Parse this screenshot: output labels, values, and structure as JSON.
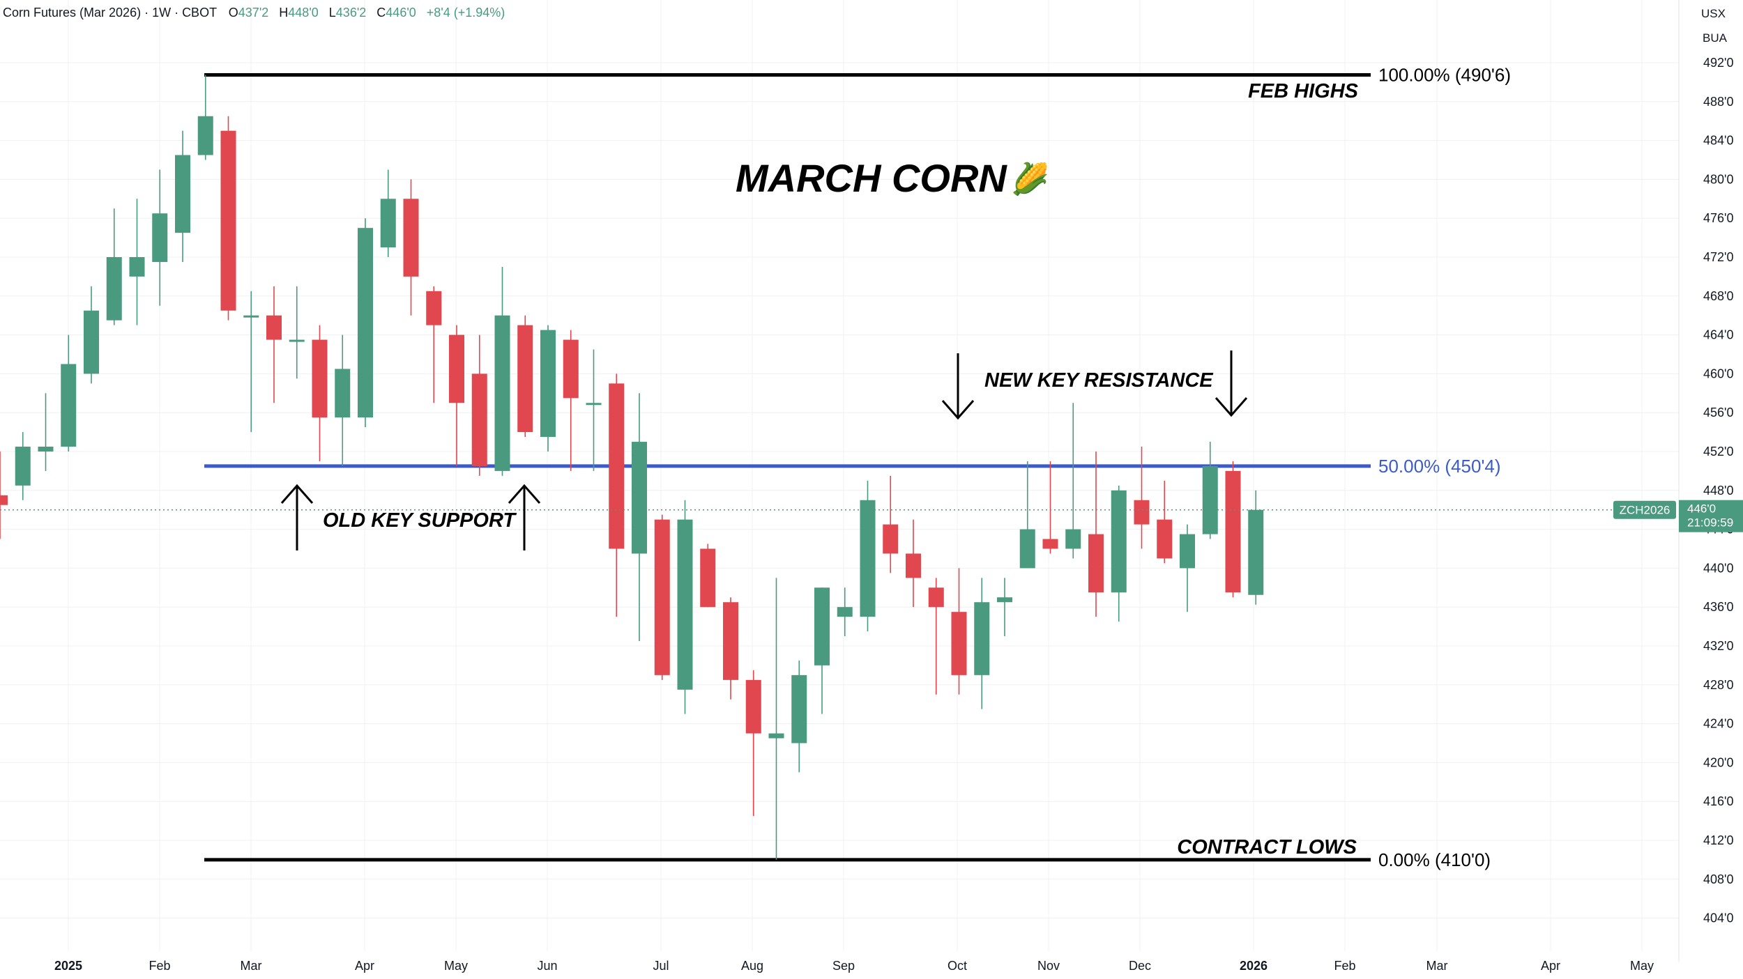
{
  "header": {
    "symbol_text": "Corn Futures (Mar 2026) · 1W · CBOT",
    "open_key": "O",
    "open_val": "437'2",
    "high_key": "H",
    "high_val": "448'0",
    "low_key": "L",
    "low_val": "436'2",
    "close_key": "C",
    "close_val": "446'0",
    "change": "+8'4 (+1.94%)"
  },
  "right_panel": {
    "currency": "USX",
    "unit": "BUA"
  },
  "colors": {
    "up": "#4a9a7f",
    "down": "#e0474f",
    "fib_mid": "#3c5bc8",
    "level_line": "#000000",
    "grid": "#eef0f3",
    "price_tag": "#4a9a7f"
  },
  "annotations": {
    "title": "MARCH CORN",
    "title_emoji": "🌽",
    "feb_highs": "FEB HIGHS",
    "contract_lows": "CONTRACT LOWS",
    "new_key_resistance": "NEW KEY RESISTANCE",
    "old_key_support": "OLD KEY SUPPORT"
  },
  "price_tag": {
    "symbol": "ZCH2026",
    "price": "446'0",
    "countdown": "21:09:59"
  },
  "chart_data": {
    "type": "candlestick",
    "interval": "1W",
    "y_unit": "cents/bu",
    "ylim": [
      402,
      495
    ],
    "y_ticks": [
      404,
      408,
      412,
      416,
      420,
      424,
      428,
      432,
      436,
      440,
      444,
      448,
      452,
      456,
      460,
      464,
      468,
      472,
      476,
      480,
      484,
      488,
      492
    ],
    "y_tick_labels": [
      "404'0",
      "408'0",
      "412'0",
      "416'0",
      "420'0",
      "424'0",
      "428'0",
      "432'0",
      "436'0",
      "440'0",
      "444'0",
      "448'0",
      "452'0",
      "456'0",
      "460'0",
      "464'0",
      "468'0",
      "472'0",
      "476'0",
      "480'0",
      "484'0",
      "488'0",
      "492'0"
    ],
    "x_labels": [
      {
        "label": "2025",
        "bold": true
      },
      {
        "label": "Feb"
      },
      {
        "label": "Mar"
      },
      {
        "label": "Apr"
      },
      {
        "label": "May"
      },
      {
        "label": "Jun"
      },
      {
        "label": "Jul"
      },
      {
        "label": "Aug"
      },
      {
        "label": "Sep"
      },
      {
        "label": "Oct"
      },
      {
        "label": "Nov"
      },
      {
        "label": "Dec"
      },
      {
        "label": "2026",
        "bold": true
      },
      {
        "label": "Feb"
      },
      {
        "label": "Mar"
      },
      {
        "label": "Apr"
      },
      {
        "label": "May"
      }
    ],
    "fib_levels": [
      {
        "label": "100.00% (490'6)",
        "price": 490.75
      },
      {
        "label": "50.00% (450'4)",
        "price": 450.5
      },
      {
        "label": "0.00% (410'0)",
        "price": 410.0
      }
    ],
    "candles": [
      {
        "o": 447.5,
        "h": 452.0,
        "l": 443.0,
        "c": 446.5
      },
      {
        "o": 448.5,
        "h": 454.0,
        "l": 447.0,
        "c": 452.5
      },
      {
        "o": 452.0,
        "h": 458.0,
        "l": 450.0,
        "c": 452.5
      },
      {
        "o": 452.5,
        "h": 464.0,
        "l": 452.0,
        "c": 461.0
      },
      {
        "o": 460.0,
        "h": 469.0,
        "l": 459.0,
        "c": 466.5
      },
      {
        "o": 465.5,
        "h": 477.0,
        "l": 465.0,
        "c": 472.0
      },
      {
        "o": 470.0,
        "h": 478.0,
        "l": 465.0,
        "c": 472.0
      },
      {
        "o": 471.5,
        "h": 481.0,
        "l": 467.0,
        "c": 476.5
      },
      {
        "o": 474.5,
        "h": 485.0,
        "l": 471.5,
        "c": 482.5
      },
      {
        "o": 482.5,
        "h": 490.75,
        "l": 482.0,
        "c": 486.5
      },
      {
        "o": 485.0,
        "h": 486.5,
        "l": 465.5,
        "c": 466.5
      },
      {
        "o": 466.0,
        "h": 468.5,
        "l": 454.0,
        "c": 466.0
      },
      {
        "o": 466.0,
        "h": 469.0,
        "l": 457.0,
        "c": 463.5
      },
      {
        "o": 463.5,
        "h": 469.0,
        "l": 459.5,
        "c": 463.5
      },
      {
        "o": 463.5,
        "h": 465.0,
        "l": 451.0,
        "c": 455.5
      },
      {
        "o": 455.5,
        "h": 464.0,
        "l": 450.5,
        "c": 460.5
      },
      {
        "o": 455.5,
        "h": 476.0,
        "l": 454.5,
        "c": 475.0
      },
      {
        "o": 473.0,
        "h": 481.0,
        "l": 472.0,
        "c": 478.0
      },
      {
        "o": 478.0,
        "h": 480.0,
        "l": 466.0,
        "c": 470.0
      },
      {
        "o": 468.5,
        "h": 469.0,
        "l": 457.0,
        "c": 465.0
      },
      {
        "o": 464.0,
        "h": 465.0,
        "l": 450.5,
        "c": 457.0
      },
      {
        "o": 460.0,
        "h": 464.0,
        "l": 449.5,
        "c": 450.5
      },
      {
        "o": 450.0,
        "h": 471.0,
        "l": 449.5,
        "c": 466.0
      },
      {
        "o": 465.0,
        "h": 466.0,
        "l": 453.5,
        "c": 454.0
      },
      {
        "o": 453.5,
        "h": 465.0,
        "l": 452.0,
        "c": 464.5
      },
      {
        "o": 463.5,
        "h": 464.5,
        "l": 450.0,
        "c": 457.5
      },
      {
        "o": 457.0,
        "h": 462.5,
        "l": 450.0,
        "c": 457.0
      },
      {
        "o": 459.0,
        "h": 460.0,
        "l": 435.0,
        "c": 442.0
      },
      {
        "o": 441.5,
        "h": 458.0,
        "l": 432.5,
        "c": 453.0
      },
      {
        "o": 445.0,
        "h": 445.5,
        "l": 428.5,
        "c": 429.0
      },
      {
        "o": 427.5,
        "h": 447.0,
        "l": 425.0,
        "c": 445.0
      },
      {
        "o": 442.0,
        "h": 442.5,
        "l": 436.0,
        "c": 436.0
      },
      {
        "o": 436.5,
        "h": 437.0,
        "l": 426.5,
        "c": 428.5
      },
      {
        "o": 428.5,
        "h": 429.5,
        "l": 414.5,
        "c": 423.0
      },
      {
        "o": 422.5,
        "h": 439.0,
        "l": 410.0,
        "c": 423.0
      },
      {
        "o": 422.0,
        "h": 430.5,
        "l": 419.0,
        "c": 429.0
      },
      {
        "o": 430.0,
        "h": 438.0,
        "l": 425.0,
        "c": 438.0
      },
      {
        "o": 435.0,
        "h": 438.0,
        "l": 433.0,
        "c": 436.0
      },
      {
        "o": 435.0,
        "h": 449.0,
        "l": 433.5,
        "c": 447.0
      },
      {
        "o": 444.5,
        "h": 449.5,
        "l": 439.5,
        "c": 441.5
      },
      {
        "o": 441.5,
        "h": 445.0,
        "l": 436.0,
        "c": 439.0
      },
      {
        "o": 438.0,
        "h": 439.0,
        "l": 427.0,
        "c": 436.0
      },
      {
        "o": 435.5,
        "h": 440.0,
        "l": 427.0,
        "c": 429.0
      },
      {
        "o": 429.0,
        "h": 439.0,
        "l": 425.5,
        "c": 436.5
      },
      {
        "o": 436.5,
        "h": 439.0,
        "l": 433.0,
        "c": 437.0
      },
      {
        "o": 440.0,
        "h": 451.0,
        "l": 440.0,
        "c": 444.0
      },
      {
        "o": 443.0,
        "h": 451.0,
        "l": 441.5,
        "c": 442.0
      },
      {
        "o": 442.0,
        "h": 457.0,
        "l": 441.0,
        "c": 444.0
      },
      {
        "o": 443.5,
        "h": 452.0,
        "l": 435.0,
        "c": 437.5
      },
      {
        "o": 437.5,
        "h": 448.5,
        "l": 434.5,
        "c": 448.0
      },
      {
        "o": 447.0,
        "h": 452.5,
        "l": 442.0,
        "c": 444.5
      },
      {
        "o": 445.0,
        "h": 449.0,
        "l": 440.5,
        "c": 441.0
      },
      {
        "o": 440.0,
        "h": 444.5,
        "l": 435.5,
        "c": 443.5
      },
      {
        "o": 443.5,
        "h": 453.0,
        "l": 443.0,
        "c": 450.5
      },
      {
        "o": 450.0,
        "h": 451.0,
        "l": 437.0,
        "c": 437.5
      },
      {
        "o": 437.25,
        "h": 448.0,
        "l": 436.25,
        "c": 446.0
      }
    ]
  }
}
